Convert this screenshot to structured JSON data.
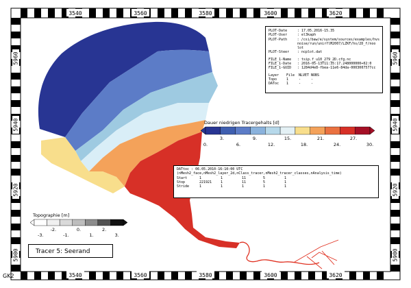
{
  "map": {
    "corner_label": "GK2",
    "title": "Tracer 5: Seerand",
    "x_ticks": [
      "3540",
      "3560",
      "3580",
      "3600",
      "3620"
    ],
    "y_ticks": [
      "5960",
      "5940",
      "5920",
      "5900"
    ],
    "colors": {
      "background": "#ffffff",
      "dark_blue": "#283593",
      "mid_blue": "#5c7cc7",
      "light_blue": "#9ecae1",
      "pale_blue": "#d9eef7",
      "yellow": "#f8de8c",
      "orange": "#f4a25a",
      "red": "#d73027",
      "river": "#e03020",
      "land": "#ffffff"
    }
  },
  "plot_info": {
    "rows": [
      {
        "key": "PLOT-Date",
        "value": ": 17.05.2016-15.35"
      },
      {
        "key": "PLOT-User",
        "value": ": el3kaph"
      },
      {
        "key": "PLOT-Path",
        "value": ": /csi/baw/e/system/sources/examples/hvs"
      },
      {
        "key": "",
        "value": "  noise/run/unirflM2007/LZKF/hs/2D_f/noo"
      },
      {
        "key": "",
        "value": "  lot"
      },
      {
        "key": "PLOT-Steer",
        "value": ": ncplot.dat"
      }
    ],
    "file_rows": [
      {
        "key": "FILE_1-Name",
        "value": ": tsip.f_u10_279_2D.cfg.nc"
      },
      {
        "key": "FILE_1-Date",
        "value": ": 2016-05-13T11:35:17.248000000+02:0"
      },
      {
        "key": "FILE_1-GUID",
        "value": ": 1284d4e8-fbea-11e6-84da-0003007577cc"
      }
    ],
    "layer_header": [
      "Layer",
      "File",
      "NLVET",
      "NOBS"
    ],
    "layer_rows": [
      [
        "Topo",
        "1",
        "-",
        "-"
      ],
      [
        "DAToc",
        "1",
        "-",
        "-"
      ]
    ]
  },
  "colorbar": {
    "title": "Dauer niedrigen Tracergehalts [d]",
    "ticks": [
      "0.",
      "3.",
      "6.",
      "9.",
      "12.",
      "15.",
      "18.",
      "21.",
      "24.",
      "27.",
      "30."
    ],
    "colors": [
      "#283593",
      "#3f5fb0",
      "#5c7cc7",
      "#8ab2dc",
      "#b6d8ea",
      "#e4f1f5",
      "#f8de8c",
      "#f4a25a",
      "#ea7140",
      "#d73027",
      "#a50f26"
    ]
  },
  "topography": {
    "title": "Topographie [m]",
    "ticks": [
      "-3.",
      "-2.",
      "-1.",
      "0.",
      "1.",
      "2.",
      "3."
    ],
    "colors": [
      "#ffffff",
      "#f0f0f0",
      "#d9d9d9",
      "#bdbdbd",
      "#8c8c8c",
      "#525252",
      "#111111"
    ]
  },
  "time_info": {
    "header": "DATtoc : 06.05.2010-16:10:00 UTC",
    "dims": "(nMesh2_face,nMesh2_layer_2d,nClass_tracer,nMesh2_tracer_classes,nAnalysis_time)",
    "rows": [
      [
        "Start",
        "1",
        "1",
        "11",
        "5",
        "1"
      ],
      [
        "Stop",
        "221921",
        "1",
        "11",
        "5",
        "1"
      ],
      [
        "Stride",
        "1",
        "1",
        "1",
        "1",
        "1"
      ]
    ]
  }
}
